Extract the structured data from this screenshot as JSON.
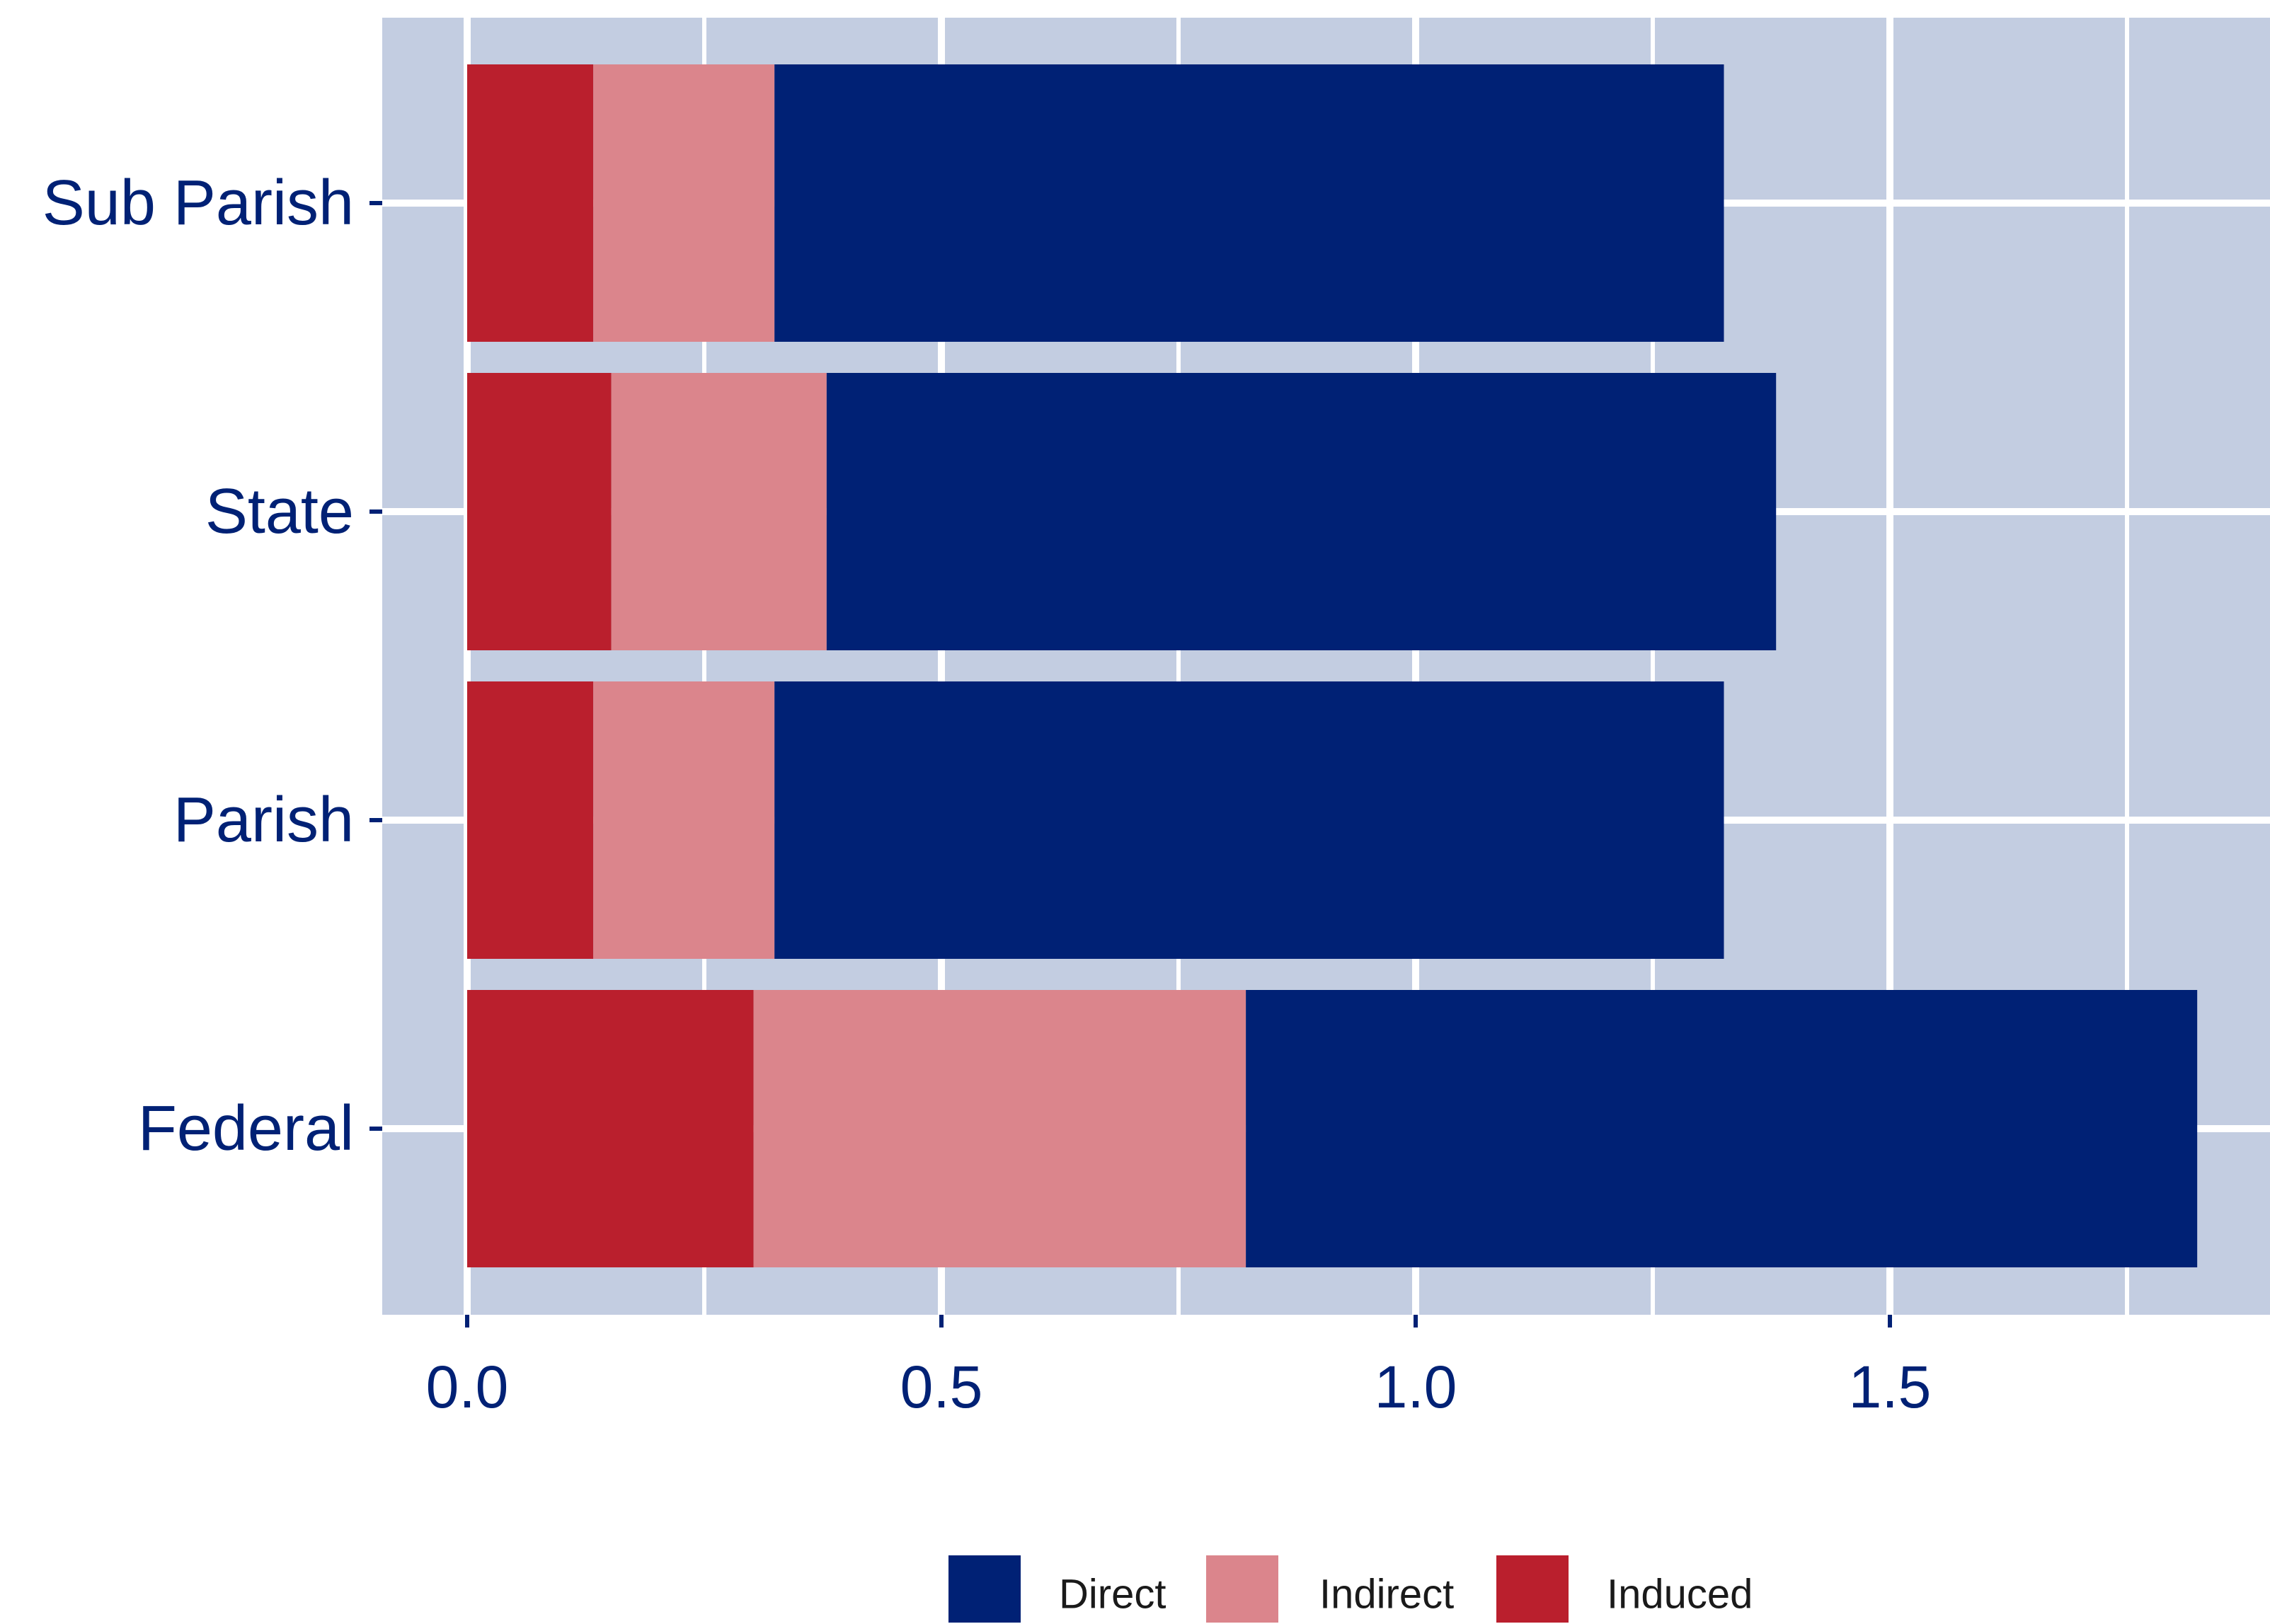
{
  "chart_data": {
    "type": "bar",
    "orientation": "horizontal",
    "stacked": true,
    "categories": [
      "Sub Parish",
      "State",
      "Parish",
      "Federal"
    ],
    "series": [
      {
        "name": "Induced",
        "values": [
          0.133,
          0.152,
          0.133,
          0.302
        ]
      },
      {
        "name": "Indirect",
        "values": [
          0.191,
          0.227,
          0.191,
          0.519
        ]
      },
      {
        "name": "Direct",
        "values": [
          1.001,
          1.001,
          1.001,
          1.003
        ]
      }
    ],
    "xlabel": "",
    "ylabel": "",
    "xlim": [
      -0.09,
      1.88
    ],
    "xticks": [
      "0.0",
      "0.5",
      "1.0",
      "1.5"
    ],
    "grid": true,
    "legend_position": "bottom",
    "legend_order": [
      "Direct",
      "Indirect",
      "Induced"
    ],
    "colors": {
      "Direct": "#002175",
      "Indirect": "#db858c",
      "Induced": "#ba1f2d",
      "panel_background": "#c3cde1",
      "grid": "#ffffff",
      "text": "#002175"
    }
  }
}
